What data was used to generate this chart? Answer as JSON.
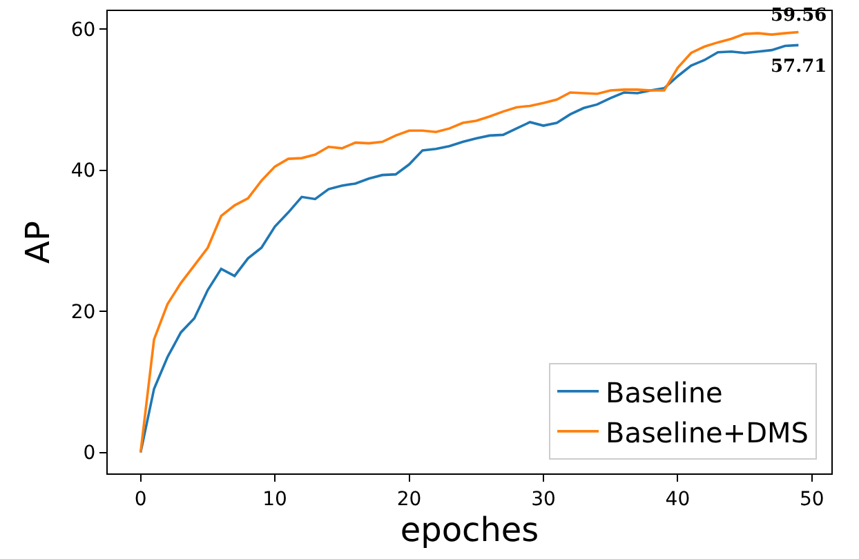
{
  "chart_data": {
    "type": "line",
    "xlabel": "epoches",
    "ylabel": "AP",
    "x": [
      0,
      1,
      2,
      3,
      4,
      5,
      6,
      7,
      8,
      9,
      10,
      11,
      12,
      13,
      14,
      15,
      16,
      17,
      18,
      19,
      20,
      21,
      22,
      23,
      24,
      25,
      26,
      27,
      28,
      29,
      30,
      31,
      32,
      33,
      34,
      35,
      36,
      37,
      38,
      39,
      40,
      41,
      42,
      43,
      44,
      45,
      46,
      47,
      48,
      49
    ],
    "series": [
      {
        "name": "Baseline",
        "color": "#1f77b4",
        "values": [
          0,
          9,
          13.5,
          17,
          19,
          23,
          26,
          25,
          27.5,
          29,
          32,
          34,
          36.2,
          35.9,
          37.3,
          37.8,
          38.1,
          38.8,
          39.3,
          39.4,
          40.8,
          42.8,
          43,
          43.4,
          44,
          44.5,
          44.9,
          45,
          45.9,
          46.8,
          46.3,
          46.7,
          47.9,
          48.8,
          49.3,
          50.2,
          51,
          50.9,
          51.3,
          51.6,
          53.3,
          54.8,
          55.6,
          56.7,
          56.8,
          56.6,
          56.8,
          57,
          57.6,
          57.71
        ]
      },
      {
        "name": "Baseline+DMS",
        "color": "#ff7f0e",
        "values": [
          0,
          16,
          21,
          24,
          26.5,
          29,
          33.5,
          35,
          36,
          38.5,
          40.5,
          41.6,
          41.7,
          42.2,
          43.3,
          43.1,
          43.9,
          43.8,
          44,
          44.9,
          45.6,
          45.6,
          45.4,
          45.9,
          46.7,
          47,
          47.6,
          48.3,
          48.9,
          49.1,
          49.5,
          50,
          51,
          50.9,
          50.8,
          51.3,
          51.4,
          51.4,
          51.3,
          51.3,
          54.5,
          56.6,
          57.5,
          58.1,
          58.6,
          59.3,
          59.4,
          59.2,
          59.4,
          59.56
        ]
      }
    ],
    "annotations": [
      {
        "text": "59.56",
        "x": 49,
        "y": 59.56
      },
      {
        "text": "57.71",
        "x": 49,
        "y": 57.71
      }
    ],
    "xlim": [
      -2.45,
      51.45
    ],
    "ylim": [
      -2.98,
      62.54
    ],
    "xticks": [
      0,
      10,
      20,
      30,
      40,
      50
    ],
    "yticks": [
      0,
      20,
      40,
      60
    ],
    "legend": "bottom right",
    "marker": "none",
    "line_style": "solid"
  }
}
